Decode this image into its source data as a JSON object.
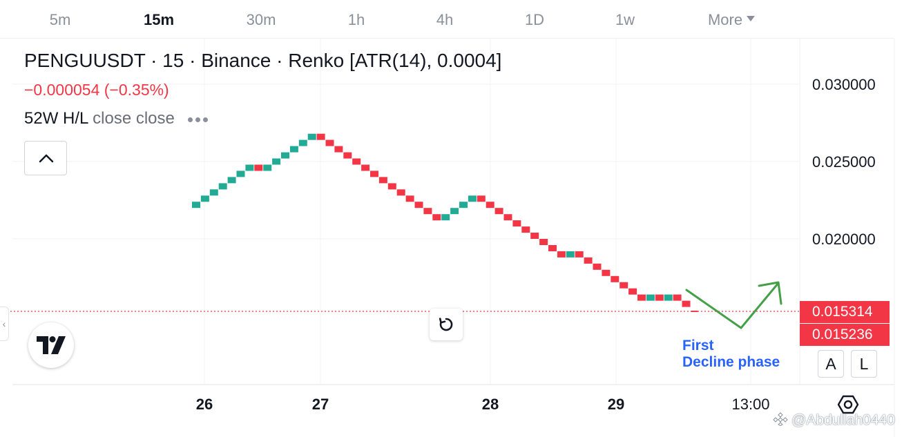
{
  "timeframes": [
    {
      "label": "5m",
      "active": false
    },
    {
      "label": "15m",
      "active": true
    },
    {
      "label": "30m",
      "active": false
    },
    {
      "label": "1h",
      "active": false
    },
    {
      "label": "4h",
      "active": false
    },
    {
      "label": "1D",
      "active": false
    },
    {
      "label": "1w",
      "active": false
    },
    {
      "label": "More",
      "active": false
    }
  ],
  "legend": {
    "title": "PENGUUSDT · 15 · Binance · Renko [ATR(14), 0.0004]",
    "change": "−0.000054 (−0.35%)",
    "indicator_name": "52W H/L",
    "indicator_args": "close close"
  },
  "annotation": {
    "line1": "First",
    "line2": "Decline phase"
  },
  "price_labels": {
    "last": "0.015314",
    "second": "0.015236"
  },
  "axis_buttons": {
    "auto": "A",
    "log": "L"
  },
  "watermark": "@Abdullah0440",
  "colors": {
    "up": "#22ab94",
    "down": "#f23645",
    "annotation_arrow": "#43a047",
    "annotation_text": "#2962ff"
  },
  "icons": {
    "collapse": "chevron-up-icon",
    "reset": "reset-icon",
    "logo": "tradingview-logo-icon",
    "settings": "settings-gear-icon"
  },
  "chart_data": {
    "type": "renko",
    "symbol": "PENGUUSDT",
    "interval": "15",
    "exchange": "Binance",
    "box_size": 0.0004,
    "y_ticks": [
      0.03,
      0.025,
      0.02
    ],
    "y_tick_labels": [
      "0.030000",
      "0.025000",
      "0.020000"
    ],
    "ylim": [
      0.0125,
      0.0321
    ],
    "x_labels": [
      {
        "label": "26",
        "bold": true
      },
      {
        "label": "27",
        "bold": true
      },
      {
        "label": "28",
        "bold": true
      },
      {
        "label": "29",
        "bold": true
      },
      {
        "label": "13:00",
        "bold": false
      }
    ],
    "last_price": 0.015314,
    "bricks": [
      {
        "dir": "up",
        "close": 0.0224
      },
      {
        "dir": "up",
        "close": 0.0228
      },
      {
        "dir": "up",
        "close": 0.0232
      },
      {
        "dir": "up",
        "close": 0.0236
      },
      {
        "dir": "up",
        "close": 0.024
      },
      {
        "dir": "up",
        "close": 0.0244
      },
      {
        "dir": "up",
        "close": 0.0248
      },
      {
        "dir": "down",
        "close": 0.0244
      },
      {
        "dir": "up",
        "close": 0.0248
      },
      {
        "dir": "up",
        "close": 0.0252
      },
      {
        "dir": "up",
        "close": 0.0256
      },
      {
        "dir": "up",
        "close": 0.026
      },
      {
        "dir": "up",
        "close": 0.0264
      },
      {
        "dir": "up",
        "close": 0.0268
      },
      {
        "dir": "down",
        "close": 0.0264
      },
      {
        "dir": "down",
        "close": 0.026
      },
      {
        "dir": "down",
        "close": 0.0256
      },
      {
        "dir": "down",
        "close": 0.0252
      },
      {
        "dir": "down",
        "close": 0.0248
      },
      {
        "dir": "down",
        "close": 0.0244
      },
      {
        "dir": "down",
        "close": 0.024
      },
      {
        "dir": "down",
        "close": 0.0236
      },
      {
        "dir": "down",
        "close": 0.0232
      },
      {
        "dir": "down",
        "close": 0.0228
      },
      {
        "dir": "down",
        "close": 0.0224
      },
      {
        "dir": "down",
        "close": 0.022
      },
      {
        "dir": "down",
        "close": 0.0216
      },
      {
        "dir": "down",
        "close": 0.0212
      },
      {
        "dir": "up",
        "close": 0.0216
      },
      {
        "dir": "up",
        "close": 0.022
      },
      {
        "dir": "up",
        "close": 0.0224
      },
      {
        "dir": "up",
        "close": 0.0228
      },
      {
        "dir": "down",
        "close": 0.0224
      },
      {
        "dir": "down",
        "close": 0.022
      },
      {
        "dir": "down",
        "close": 0.0216
      },
      {
        "dir": "down",
        "close": 0.0212
      },
      {
        "dir": "down",
        "close": 0.0208
      },
      {
        "dir": "down",
        "close": 0.0204
      },
      {
        "dir": "down",
        "close": 0.02
      },
      {
        "dir": "down",
        "close": 0.0196
      },
      {
        "dir": "down",
        "close": 0.0192
      },
      {
        "dir": "down",
        "close": 0.0188
      },
      {
        "dir": "up",
        "close": 0.0192
      },
      {
        "dir": "down",
        "close": 0.0188
      },
      {
        "dir": "down",
        "close": 0.0184
      },
      {
        "dir": "down",
        "close": 0.018
      },
      {
        "dir": "down",
        "close": 0.0176
      },
      {
        "dir": "down",
        "close": 0.0172
      },
      {
        "dir": "down",
        "close": 0.0168
      },
      {
        "dir": "down",
        "close": 0.0164
      },
      {
        "dir": "down",
        "close": 0.016
      },
      {
        "dir": "up",
        "close": 0.0164
      },
      {
        "dir": "down",
        "close": 0.016
      },
      {
        "dir": "up",
        "close": 0.0164
      },
      {
        "dir": "down",
        "close": 0.016
      },
      {
        "dir": "down",
        "close": 0.0156
      }
    ]
  }
}
